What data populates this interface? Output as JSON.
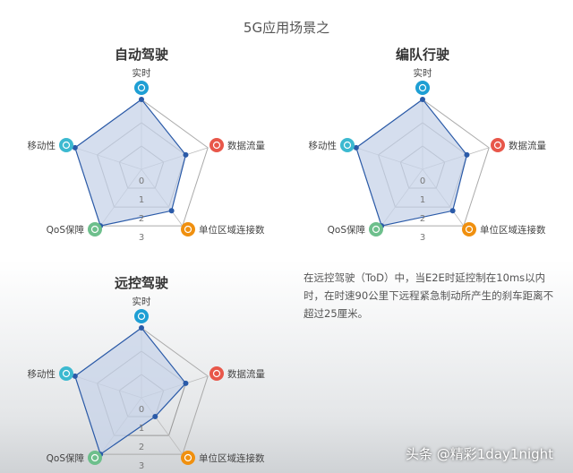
{
  "page_title": "5G应用场景之",
  "description": "在远控驾驶（ToD）中，当E2E时延控制在10ms以内时，在时速90公里下远程紧急制动所产生的刹车距离不超过25厘米。",
  "watermark": "头条 @精彩1day1night",
  "chart_data": [
    {
      "type": "radar",
      "title": "自动驾驶",
      "axes": [
        "实时",
        "数据流量",
        "单位区域连接数",
        "QoS保障",
        "移动性"
      ],
      "axis_icons": [
        "clock-icon",
        "cloud-icon",
        "network-icon",
        "list-icon",
        "move-icon"
      ],
      "axis_colors": [
        "#1e9fd4",
        "#e8574a",
        "#f0900f",
        "#6dbf8c",
        "#3cb9d0"
      ],
      "ticks": [
        "0",
        "1",
        "2",
        "3"
      ],
      "range": [
        0,
        3
      ],
      "values": [
        3,
        2,
        2.2,
        3,
        3
      ],
      "color": "#2a5aa8",
      "fill": "#c7d3e8"
    },
    {
      "type": "radar",
      "title": "编队行驶",
      "axes": [
        "实时",
        "数据流量",
        "单位区域连接数",
        "QoS保障",
        "移动性"
      ],
      "axis_icons": [
        "clock-icon",
        "cloud-icon",
        "network-icon",
        "list-icon",
        "move-icon"
      ],
      "axis_colors": [
        "#1e9fd4",
        "#e8574a",
        "#f0900f",
        "#6dbf8c",
        "#3cb9d0"
      ],
      "ticks": [
        "0",
        "1",
        "2",
        "3"
      ],
      "range": [
        0,
        3
      ],
      "values": [
        3,
        2,
        2.2,
        3,
        3
      ],
      "color": "#2a5aa8",
      "fill": "#c7d3e8"
    },
    {
      "type": "radar",
      "title": "远控驾驶",
      "axes": [
        "实时",
        "数据流量",
        "单位区域连接数",
        "QoS保障",
        "移动性"
      ],
      "axis_icons": [
        "clock-icon",
        "cloud-icon",
        "network-icon",
        "list-icon",
        "move-icon"
      ],
      "axis_colors": [
        "#1e9fd4",
        "#e8574a",
        "#f0900f",
        "#6dbf8c",
        "#3cb9d0"
      ],
      "ticks": [
        "0",
        "1",
        "2",
        "3"
      ],
      "range": [
        0,
        3
      ],
      "values": [
        3,
        2,
        1,
        3,
        3
      ],
      "color": "#2a5aa8",
      "fill": "#c7d3e8"
    }
  ]
}
